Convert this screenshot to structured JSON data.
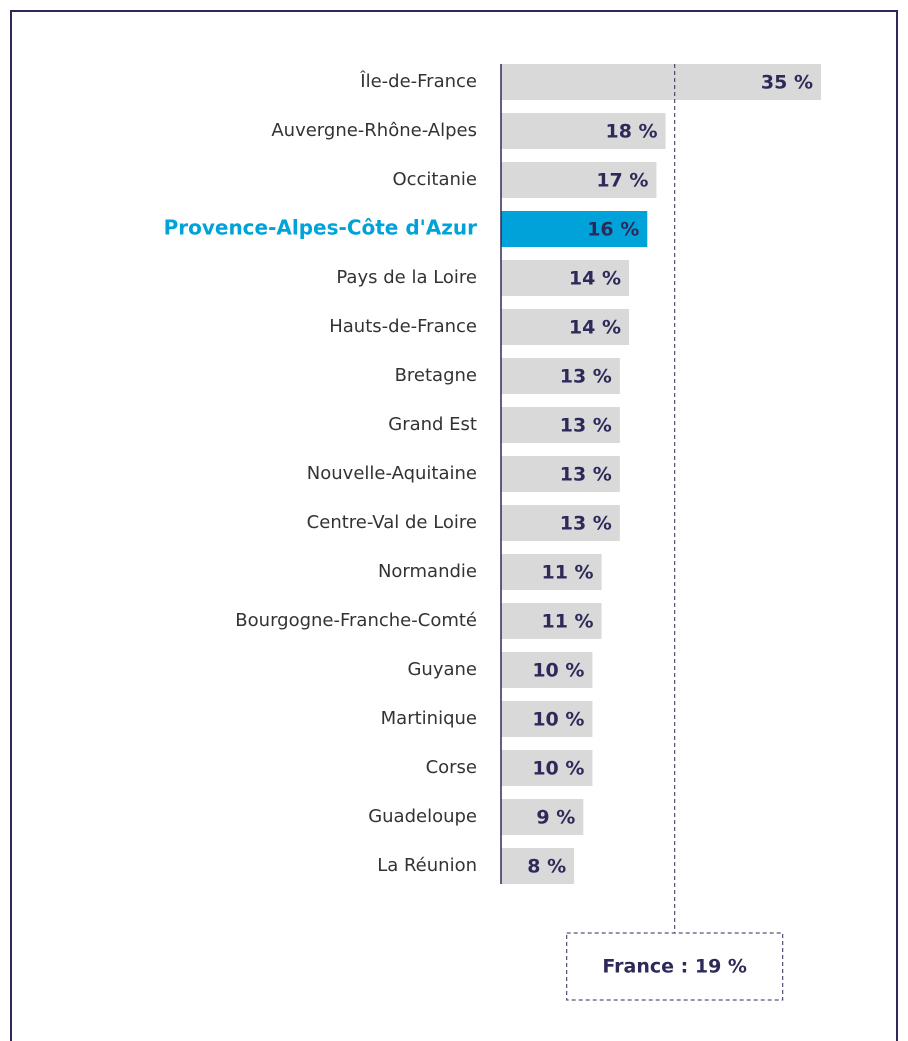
{
  "chart_data": {
    "type": "bar",
    "orientation": "horizontal",
    "categories": [
      "Île-de-France",
      "Auvergne-Rhône-Alpes",
      "Occitanie",
      "Provence-Alpes-Côte d'Azur",
      "Pays de la Loire",
      "Hauts-de-France",
      "Bretagne",
      "Grand Est",
      "Nouvelle-Aquitaine",
      "Centre-Val de Loire",
      "Normandie",
      "Bourgogne-Franche-Comté",
      "Guyane",
      "Martinique",
      "Corse",
      "Guadeloupe",
      "La Réunion"
    ],
    "values": [
      35,
      18,
      17,
      16,
      14,
      14,
      13,
      13,
      13,
      13,
      11,
      11,
      10,
      10,
      10,
      9,
      8
    ],
    "value_labels": [
      "35 %",
      "18 %",
      "17 %",
      "16 %",
      "14 %",
      "14 %",
      "13 %",
      "13 %",
      "13 %",
      "13 %",
      "11 %",
      "11 %",
      "10 %",
      "10 %",
      "10 %",
      "9 %",
      "8 %"
    ],
    "color": "#d9d9d9",
    "colors": [
      "#d9d9d9",
      "#d9d9d9",
      "#d9d9d9",
      "#00a3d9",
      "#d9d9d9",
      "#d9d9d9",
      "#d9d9d9",
      "#d9d9d9",
      "#d9d9d9",
      "#d9d9d9",
      "#d9d9d9",
      "#d9d9d9",
      "#d9d9d9",
      "#d9d9d9",
      "#d9d9d9",
      "#d9d9d9",
      "#d9d9d9"
    ],
    "xlim": [
      0,
      35
    ],
    "reference": {
      "value": 19,
      "label": "France : 19 %"
    }
  }
}
